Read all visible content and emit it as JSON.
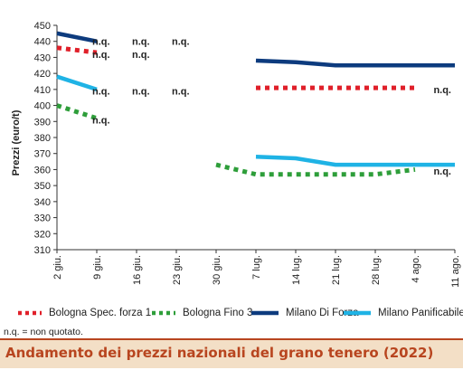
{
  "chart_data": {
    "type": "line",
    "ylabel": "Prezzi (euro/t)",
    "xlabel": "",
    "ylim": [
      310,
      450
    ],
    "y_ticks": [
      310,
      320,
      330,
      340,
      350,
      360,
      370,
      380,
      390,
      400,
      410,
      420,
      430,
      440,
      450
    ],
    "categories": [
      "2 giu.",
      "9 giu.",
      "16 giu.",
      "23 giu.",
      "30 giu.",
      "7 lug.",
      "14 lug.",
      "21 lug.",
      "28 lug.",
      "4 ago.",
      "11 ago."
    ],
    "grid": false,
    "legend_position": "bottom",
    "series": [
      {
        "name": "Bologna Spec. forza 1",
        "color": "#e0202a",
        "style": "dotted",
        "values": [
          436,
          433,
          null,
          null,
          null,
          411,
          411,
          411,
          411,
          411,
          null
        ]
      },
      {
        "name": "Bologna Fino 3",
        "color": "#2e9e3a",
        "style": "dotted",
        "values": [
          400,
          392,
          null,
          null,
          363,
          357,
          357,
          357,
          357,
          360,
          null
        ]
      },
      {
        "name": "Milano Di Forza",
        "color": "#0d3b7e",
        "style": "solid",
        "values": [
          445,
          440,
          null,
          null,
          null,
          428,
          427,
          425,
          425,
          425,
          425
        ]
      },
      {
        "name": "Milano Panificabile",
        "color": "#1fb3e5",
        "style": "solid",
        "values": [
          418,
          410,
          null,
          null,
          null,
          368,
          367,
          363,
          363,
          363,
          363
        ]
      }
    ],
    "annotations": [
      {
        "text": "n.q.",
        "x": "9 giu.",
        "y": 440
      },
      {
        "text": "n.q.",
        "x": "16 giu.",
        "y": 440
      },
      {
        "text": "n.q.",
        "x": "23 giu.",
        "y": 440
      },
      {
        "text": "n.q.",
        "x": "9 giu.",
        "y": 432
      },
      {
        "text": "n.q.",
        "x": "16 giu.",
        "y": 432
      },
      {
        "text": "n.q.",
        "x": "9 giu.",
        "y": 409
      },
      {
        "text": "n.q.",
        "x": "16 giu.",
        "y": 409
      },
      {
        "text": "n.q.",
        "x": "23 giu.",
        "y": 409
      },
      {
        "text": "n.q.",
        "x": "9 giu.",
        "y": 391
      },
      {
        "text": "n.q.",
        "x": "11 ago.",
        "y": 410
      },
      {
        "text": "n.q.",
        "x": "11 ago.",
        "y": 359
      }
    ]
  },
  "legend": {
    "items": [
      {
        "label": "Bologna Spec. forza 1",
        "color": "#e0202a",
        "style": "dotted"
      },
      {
        "label": "Bologna Fino 3",
        "color": "#2e9e3a",
        "style": "dotted"
      },
      {
        "label": "Milano Di Forza",
        "color": "#0d3b7e",
        "style": "solid"
      },
      {
        "label": "Milano Panificabile",
        "color": "#1fb3e5",
        "style": "solid"
      }
    ]
  },
  "note": "n.q. = non quotato.",
  "caption": {
    "title": "Andamento dei prezzi nazionali del grano tenero (2022)",
    "text_color": "#b8451f",
    "background": "#f3dfc6"
  }
}
